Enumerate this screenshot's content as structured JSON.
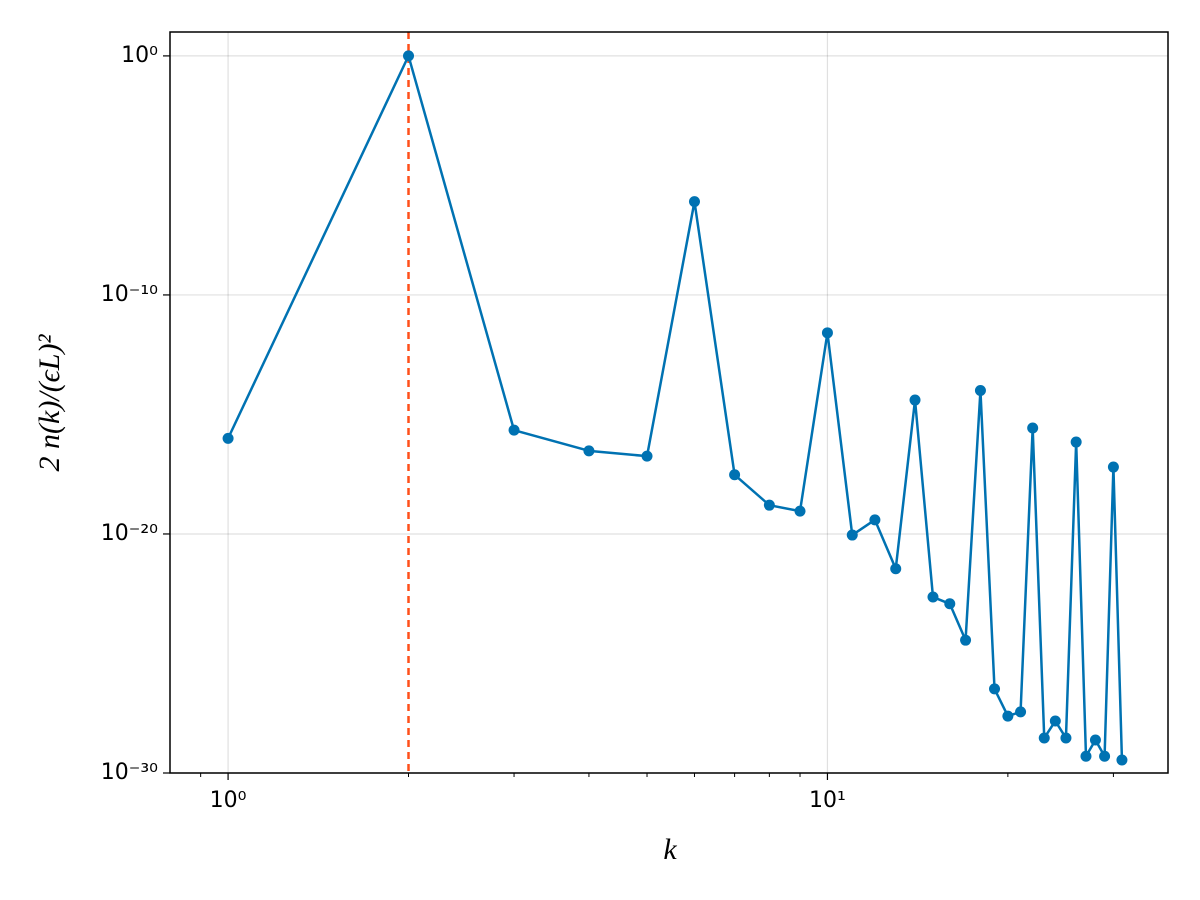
{
  "chart_data": {
    "type": "line",
    "xlabel": "k",
    "ylabel": "2 n(k)/(ϵL)²",
    "xscale": "log",
    "yscale": "log",
    "x": [
      1,
      2,
      3,
      4,
      5,
      6,
      7,
      8,
      9,
      10,
      11,
      12,
      13,
      14,
      15,
      16,
      17,
      18,
      19,
      20,
      21,
      22,
      23,
      24,
      25,
      26,
      27,
      28,
      29,
      30,
      31
    ],
    "values": [
      1e-16,
      1,
      2.2e-16,
      3e-17,
      1.8e-17,
      8e-07,
      3e-18,
      1.6e-19,
      9e-20,
      2.6e-12,
      9e-21,
      3.9e-20,
      3.5e-22,
      4e-15,
      2.3e-23,
      1.2e-23,
      3.6e-25,
      1e-14,
      3.3e-27,
      2.4e-28,
      3.6e-28,
      2.7e-16,
      2.9e-29,
      1.5e-28,
      2.9e-29,
      7e-17,
      5e-30,
      2.4e-29,
      5e-30,
      6.3e-18,
      3.5e-30
    ],
    "color": "#0072b2",
    "markers": true,
    "vline": 2,
    "vline_color": "#ff4f1a",
    "xlim": [
      0.8,
      37
    ],
    "ylim": [
      1e-30,
      10
    ],
    "xticks": [
      {
        "value": 1,
        "label": "10⁰"
      },
      {
        "value": 10,
        "label": "10¹"
      }
    ],
    "xminorticks": [
      0.9,
      2,
      3,
      4,
      5,
      6,
      7,
      8,
      9,
      20,
      30
    ],
    "yticks": [
      {
        "value": 1e-30,
        "label": "10⁻³⁰"
      },
      {
        "value": 1e-20,
        "label": "10⁻²⁰"
      },
      {
        "value": 1e-10,
        "label": "10⁻¹⁰"
      },
      {
        "value": 1,
        "label": "10⁰"
      }
    ],
    "grid": true
  }
}
